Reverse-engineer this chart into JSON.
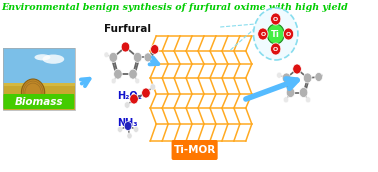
{
  "title": "Environmental benign synthesis of furfural oxime with high yield",
  "title_color": "#00cc00",
  "title_fontsize": 6.8,
  "bg_color": "#ffffff",
  "biomass_label": "Biomass",
  "biomass_label_color": "#ffffff",
  "biomass_bg": "#44cc00",
  "timor_label": "Ti-MOR",
  "timor_label_color": "#ffffff",
  "timor_bg": "#ff7700",
  "h2o2_label": "H₂O₂",
  "nh3_label": "NH₃",
  "furfural_label": "Furfural",
  "arrow_color": "#55bbff",
  "zeolite_color": "#ffaa22",
  "ti_center_color": "#44ee44",
  "o_color": "#dd1111",
  "ti_circle_color": "#88ddee",
  "gray_atom": "#b0b0b0",
  "white_atom": "#e8e8e8",
  "bond_color": "#666666"
}
